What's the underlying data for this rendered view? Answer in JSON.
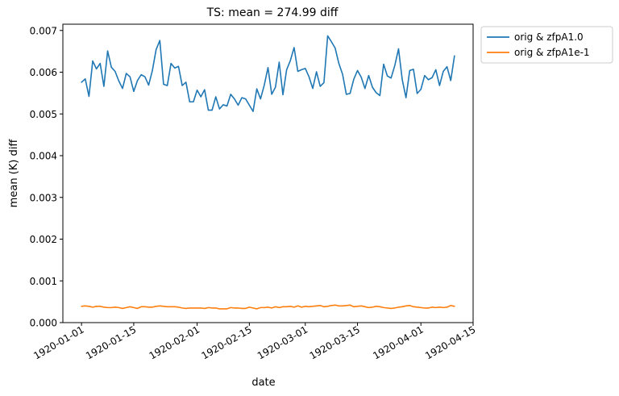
{
  "chart_data": {
    "type": "line",
    "title": "TS: mean =  274.99 diff",
    "xlabel": "date",
    "ylabel": "mean (K) diff",
    "x_start": "1920-01-01",
    "x_end": "1920-04-10",
    "xlim": [
      "1919-12-27",
      "1920-04-15"
    ],
    "ylim": [
      0,
      0.00715
    ],
    "x_ticks": [
      "1920-01-01",
      "1920-01-15",
      "1920-02-01",
      "1920-02-15",
      "1920-03-01",
      "1920-03-15",
      "1920-04-01",
      "1920-04-15"
    ],
    "y_ticks": [
      "0.000",
      "0.001",
      "0.002",
      "0.003",
      "0.004",
      "0.005",
      "0.006",
      "0.007"
    ],
    "legend_position": "outside-top-right",
    "series": [
      {
        "name": "orig & zfpA1.0",
        "color": "#1f77b4",
        "values": [
          0.00576,
          0.00584,
          0.00542,
          0.00627,
          0.00608,
          0.00621,
          0.00566,
          0.00651,
          0.00612,
          0.00602,
          0.00579,
          0.00561,
          0.00597,
          0.00589,
          0.00554,
          0.0058,
          0.00594,
          0.00589,
          0.00569,
          0.00604,
          0.00654,
          0.00676,
          0.00571,
          0.00568,
          0.00621,
          0.0061,
          0.00614,
          0.00568,
          0.00576,
          0.00529,
          0.00529,
          0.00557,
          0.00541,
          0.00558,
          0.00509,
          0.00509,
          0.00541,
          0.00512,
          0.00522,
          0.00519,
          0.00547,
          0.00536,
          0.00521,
          0.00539,
          0.00536,
          0.00521,
          0.00506,
          0.0056,
          0.00536,
          0.00569,
          0.00611,
          0.00547,
          0.00564,
          0.00624,
          0.00546,
          0.00606,
          0.00628,
          0.00659,
          0.00602,
          0.00606,
          0.00609,
          0.00589,
          0.00561,
          0.00601,
          0.00566,
          0.00575,
          0.00687,
          0.00673,
          0.00658,
          0.00621,
          0.00595,
          0.00547,
          0.00549,
          0.00583,
          0.00604,
          0.00588,
          0.00561,
          0.00592,
          0.00564,
          0.00551,
          0.00544,
          0.00619,
          0.00591,
          0.00586,
          0.00616,
          0.00656,
          0.00582,
          0.00539,
          0.00604,
          0.00607,
          0.00549,
          0.00559,
          0.00592,
          0.00582,
          0.00587,
          0.00606,
          0.00568,
          0.00602,
          0.00613,
          0.0058,
          0.00639
        ]
      },
      {
        "name": "orig & zfpA1e-1",
        "color": "#ff7f0e",
        "values": [
          0.00039,
          0.0004,
          0.00039,
          0.00037,
          0.00039,
          0.00039,
          0.00037,
          0.00036,
          0.00036,
          0.00037,
          0.00036,
          0.00034,
          0.00036,
          0.00038,
          0.00036,
          0.00034,
          0.00038,
          0.00038,
          0.00037,
          0.00037,
          0.00039,
          0.0004,
          0.00039,
          0.00038,
          0.00038,
          0.00038,
          0.00037,
          0.00035,
          0.00034,
          0.00035,
          0.00035,
          0.00035,
          0.00035,
          0.00034,
          0.00036,
          0.00035,
          0.00035,
          0.00033,
          0.00033,
          0.00033,
          0.00036,
          0.00035,
          0.00035,
          0.00034,
          0.00034,
          0.00037,
          0.00035,
          0.00033,
          0.00036,
          0.00036,
          0.00037,
          0.00035,
          0.00038,
          0.00036,
          0.00038,
          0.00038,
          0.00039,
          0.00037,
          0.0004,
          0.00037,
          0.00039,
          0.00038,
          0.00039,
          0.0004,
          0.00041,
          0.00038,
          0.00039,
          0.00041,
          0.00042,
          0.0004,
          0.0004,
          0.00041,
          0.00042,
          0.00038,
          0.00039,
          0.0004,
          0.00038,
          0.00036,
          0.00037,
          0.00039,
          0.00038,
          0.00036,
          0.00035,
          0.00034,
          0.00035,
          0.00037,
          0.00038,
          0.0004,
          0.00041,
          0.00038,
          0.00037,
          0.00036,
          0.00035,
          0.00035,
          0.00037,
          0.00036,
          0.00037,
          0.00036,
          0.00037,
          0.00041,
          0.00039
        ]
      }
    ]
  }
}
